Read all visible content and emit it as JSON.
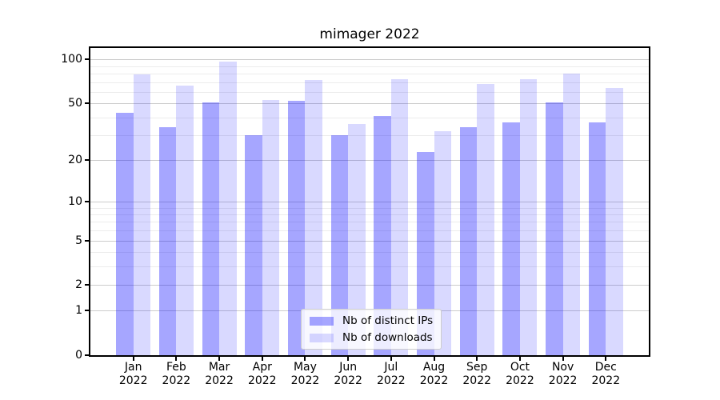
{
  "chart_data": {
    "type": "bar",
    "title": "mimager 2022",
    "categories": [
      "Jan",
      "Feb",
      "Mar",
      "Apr",
      "May",
      "Jun",
      "Jul",
      "Aug",
      "Sep",
      "Oct",
      "Nov",
      "Dec"
    ],
    "year": "2022",
    "series": [
      {
        "name": "Nb of distinct IPs",
        "color": "rgba(0,0,255,0.35)",
        "values": [
          43,
          34,
          51,
          30,
          52,
          30,
          41,
          23,
          34,
          37,
          51,
          37
        ]
      },
      {
        "name": "Nb of downloads",
        "color": "rgba(0,0,255,0.15)",
        "values": [
          79,
          66,
          97,
          53,
          72,
          36,
          73,
          32,
          68,
          73,
          80,
          64
        ]
      }
    ],
    "yscale": "log1p",
    "ylim": [
      0,
      120
    ],
    "yticks": [
      0,
      1,
      2,
      5,
      10,
      20,
      50,
      100
    ],
    "yticks_minor": [
      3,
      4,
      6,
      7,
      8,
      9,
      30,
      40,
      60,
      70,
      80,
      90
    ],
    "grid": true,
    "legend_position": "lower center"
  },
  "colors": {
    "background": "#ffffff",
    "axis": "#000000",
    "grid_major": "#cccccc",
    "grid_minor": "#ececec",
    "text": "#000000"
  }
}
